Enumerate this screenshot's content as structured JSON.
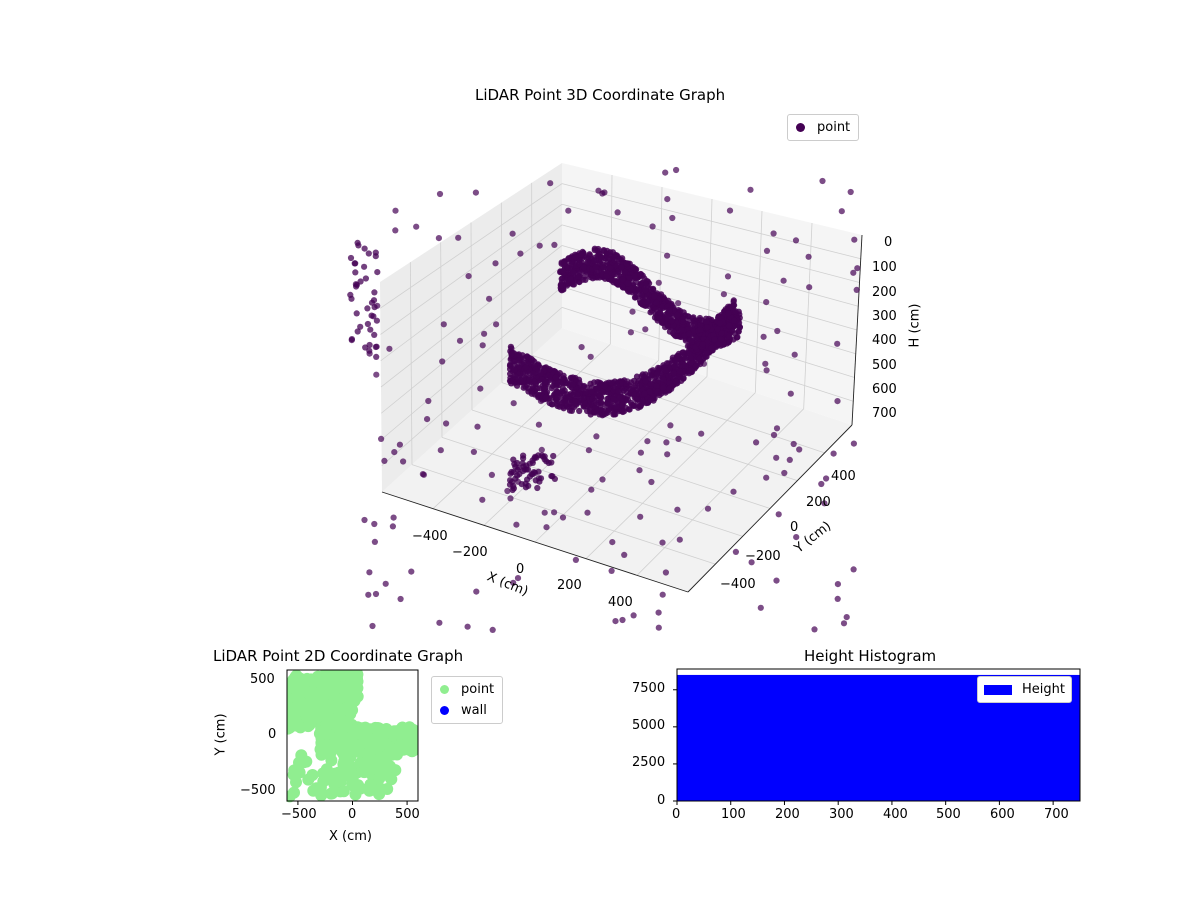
{
  "chart_data": [
    {
      "type": "scatter3d",
      "title": "LiDAR Point 3D Coordinate Graph",
      "xlabel": "X (cm)",
      "ylabel": "Y (cm)",
      "zlabel": "H (cm)",
      "xticks": [
        "−400",
        "−200",
        "0",
        "200",
        "400"
      ],
      "yticks": [
        "−400",
        "−200",
        "0",
        "200",
        "400"
      ],
      "zticks": [
        "0",
        "100",
        "200",
        "300",
        "400",
        "500",
        "600",
        "700"
      ],
      "xlim": [
        -560,
        560
      ],
      "ylim": [
        -560,
        560
      ],
      "zlim": [
        750,
        0
      ],
      "legend": {
        "placement": "top-right",
        "entries": [
          {
            "label": "point",
            "color": "#440154"
          }
        ]
      },
      "series": [
        {
          "name": "point",
          "color": "#440154",
          "description_points": "dense curved wall bands plus scattered outliers"
        }
      ]
    },
    {
      "type": "scatter",
      "title": "LiDAR Point 2D Coordinate Graph",
      "xlabel": "X (cm)",
      "ylabel": "Y (cm)",
      "xticks": [
        "−500",
        "0",
        "500"
      ],
      "yticks": [
        "−500",
        "0",
        "500"
      ],
      "xlim": [
        -600,
        600
      ],
      "ylim": [
        -600,
        600
      ],
      "legend": {
        "placement": "outside-right",
        "entries": [
          {
            "label": "point",
            "color": "#90ee90"
          },
          {
            "label": "wall",
            "color": "#0000ff"
          }
        ]
      }
    },
    {
      "type": "bar",
      "title": "Height Histogram",
      "xticks": [
        "0",
        "100",
        "200",
        "300",
        "400",
        "500",
        "600",
        "700"
      ],
      "yticks": [
        "0",
        "2500",
        "5000",
        "7500"
      ],
      "xlim": [
        0,
        750
      ],
      "ylim": [
        0,
        8900
      ],
      "series": [
        {
          "name": "Height",
          "color": "#0000ff",
          "bin_range": [
            0,
            750
          ],
          "count": 8500
        }
      ],
      "legend": {
        "placement": "top-right",
        "entries": [
          {
            "label": "Height",
            "color": "#0000ff"
          }
        ]
      }
    }
  ]
}
